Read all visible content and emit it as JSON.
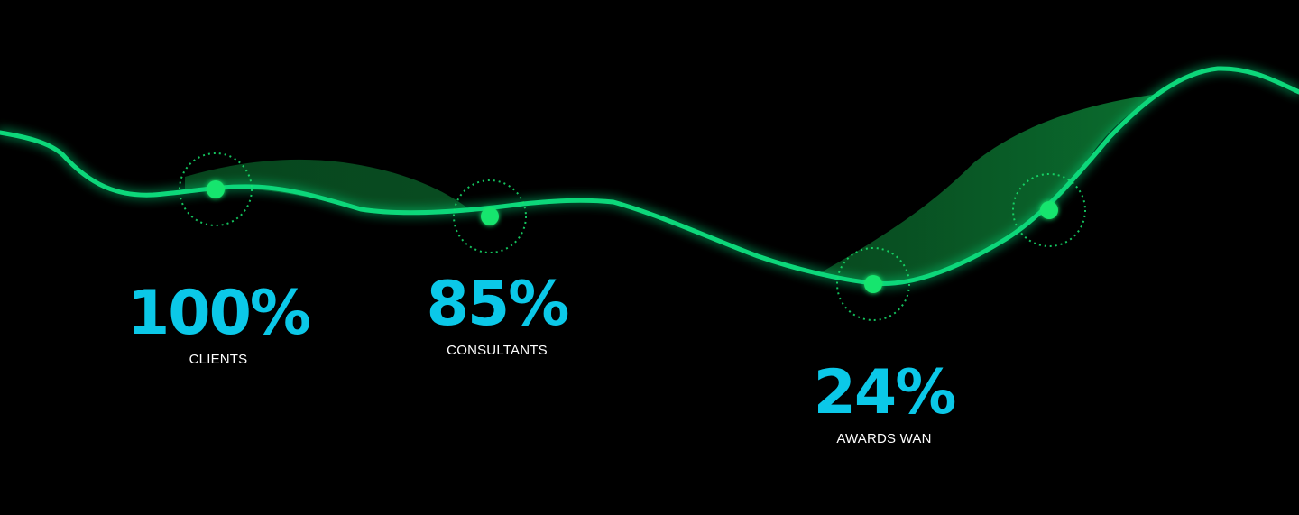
{
  "colors": {
    "background": "#000000",
    "line": "#10d77a",
    "marker": "#17e56e",
    "value_text": "#0bc8e8",
    "label_text": "#ffffff",
    "wave_fill": "#0a6a2e"
  },
  "stats": [
    {
      "value": "100%",
      "label": "CLIENTS"
    },
    {
      "value": "85%",
      "label": "CONSULTANTS"
    },
    {
      "value": "24%",
      "label": "AWARDS WAN"
    }
  ]
}
